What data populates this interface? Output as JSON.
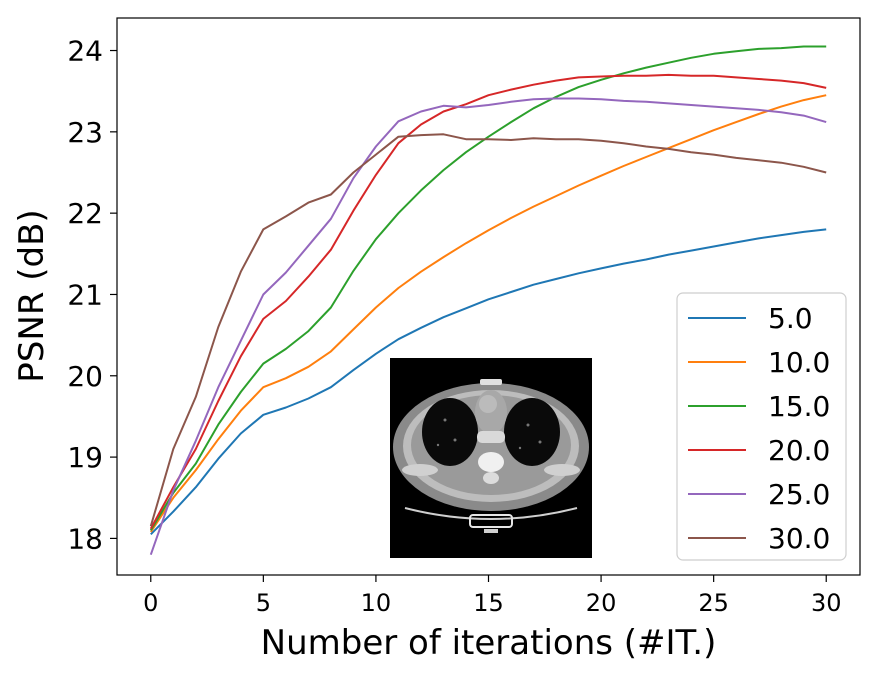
{
  "chart_data": {
    "type": "line",
    "title": "",
    "xlabel": "Number of iterations (#IT.)",
    "ylabel": "PSNR (dB)",
    "xlim": [
      -1.5,
      31.5
    ],
    "ylim": [
      17.55,
      24.4
    ],
    "xticks": [
      0,
      5,
      10,
      15,
      20,
      25,
      30
    ],
    "yticks": [
      18,
      19,
      20,
      21,
      22,
      23,
      24
    ],
    "grid": false,
    "legend_position": "lower-right",
    "inset_image": "ct-chest-axial-slice",
    "x": [
      0,
      1,
      2,
      3,
      4,
      5,
      6,
      7,
      8,
      9,
      10,
      11,
      12,
      13,
      14,
      15,
      16,
      17,
      18,
      19,
      20,
      21,
      22,
      23,
      24,
      25,
      26,
      27,
      28,
      29,
      30
    ],
    "series": [
      {
        "name": "5.0",
        "color": "#1f77b4",
        "values": [
          18.05,
          18.33,
          18.63,
          18.98,
          19.29,
          19.52,
          19.61,
          19.72,
          19.86,
          20.07,
          20.27,
          20.45,
          20.59,
          20.72,
          20.83,
          20.94,
          21.03,
          21.12,
          21.19,
          21.26,
          21.32,
          21.38,
          21.43,
          21.49,
          21.54,
          21.59,
          21.64,
          21.69,
          21.73,
          21.77,
          21.8
        ]
      },
      {
        "name": "10.0",
        "color": "#ff7f0e",
        "values": [
          18.08,
          18.5,
          18.84,
          19.22,
          19.57,
          19.86,
          19.97,
          20.11,
          20.3,
          20.57,
          20.84,
          21.08,
          21.28,
          21.46,
          21.63,
          21.79,
          21.94,
          22.08,
          22.21,
          22.34,
          22.46,
          22.58,
          22.69,
          22.8,
          22.91,
          23.02,
          23.12,
          23.22,
          23.31,
          23.39,
          23.45
        ]
      },
      {
        "name": "15.0",
        "color": "#2ca02c",
        "values": [
          18.1,
          18.56,
          18.92,
          19.4,
          19.8,
          20.15,
          20.33,
          20.55,
          20.84,
          21.29,
          21.68,
          22.0,
          22.28,
          22.53,
          22.75,
          22.94,
          23.12,
          23.29,
          23.43,
          23.55,
          23.64,
          23.72,
          23.79,
          23.85,
          23.91,
          23.96,
          23.99,
          24.02,
          24.03,
          24.05,
          24.05
        ]
      },
      {
        "name": "20.0",
        "color": "#d62728",
        "values": [
          18.12,
          18.63,
          19.1,
          19.69,
          20.24,
          20.7,
          20.92,
          21.22,
          21.55,
          22.03,
          22.47,
          22.86,
          23.09,
          23.25,
          23.34,
          23.45,
          23.52,
          23.58,
          23.63,
          23.67,
          23.68,
          23.69,
          23.69,
          23.7,
          23.69,
          23.69,
          23.67,
          23.65,
          23.63,
          23.6,
          23.54
        ]
      },
      {
        "name": "25.0",
        "color": "#9467bd",
        "values": [
          17.8,
          18.59,
          19.2,
          19.86,
          20.43,
          21.0,
          21.27,
          21.6,
          21.93,
          22.43,
          22.82,
          23.13,
          23.25,
          23.32,
          23.3,
          23.33,
          23.37,
          23.4,
          23.41,
          23.41,
          23.4,
          23.38,
          23.37,
          23.35,
          23.33,
          23.31,
          23.29,
          23.27,
          23.24,
          23.2,
          23.12
        ]
      },
      {
        "name": "30.0",
        "color": "#8c564b",
        "values": [
          18.15,
          19.1,
          19.74,
          20.6,
          21.28,
          21.8,
          21.96,
          22.13,
          22.23,
          22.5,
          22.72,
          22.94,
          22.96,
          22.97,
          22.91,
          22.91,
          22.9,
          22.92,
          22.91,
          22.91,
          22.89,
          22.86,
          22.82,
          22.79,
          22.75,
          22.72,
          22.68,
          22.65,
          22.62,
          22.57,
          22.5
        ]
      }
    ]
  }
}
